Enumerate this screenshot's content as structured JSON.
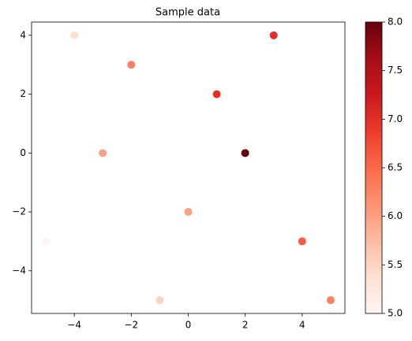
{
  "chart_data": {
    "type": "scatter",
    "title": "Sample data",
    "x": [
      -5,
      -4,
      -3,
      -2,
      -1,
      0,
      1,
      2,
      3,
      4,
      5
    ],
    "y": [
      -3,
      4,
      0,
      3,
      -5,
      -2,
      2,
      0,
      4,
      -3,
      -5
    ],
    "c": [
      5.0,
      5.4,
      6.0,
      6.3,
      5.5,
      6.0,
      7.0,
      8.0,
      7.0,
      6.6,
      6.3
    ],
    "xlim": [
      -5.5,
      5.5
    ],
    "ylim": [
      -5.45,
      4.45
    ],
    "xticks": [
      {
        "value": -4,
        "label": "−4"
      },
      {
        "value": -2,
        "label": "−2"
      },
      0,
      2,
      4
    ],
    "yticks": [
      {
        "value": -4,
        "label": "−4"
      },
      {
        "value": -2,
        "label": "−2"
      },
      0,
      2,
      4
    ],
    "clim": [
      5,
      8
    ],
    "cticks": [
      {
        "value": 5,
        "label": "5.0"
      },
      {
        "value": 5.5,
        "label": "5.5"
      },
      {
        "value": 6,
        "label": "6.0"
      },
      {
        "value": 6.5,
        "label": "6.5"
      },
      {
        "value": 7,
        "label": "7.0"
      },
      {
        "value": 7.5,
        "label": "7.5"
      },
      {
        "value": 8,
        "label": "8.0"
      }
    ],
    "colorscale": [
      "#fff5f0",
      "#fee0d2",
      "#fcbba1",
      "#fc9272",
      "#fb6a4a",
      "#ef3b2c",
      "#cb181d",
      "#a50f15",
      "#67000d"
    ]
  }
}
